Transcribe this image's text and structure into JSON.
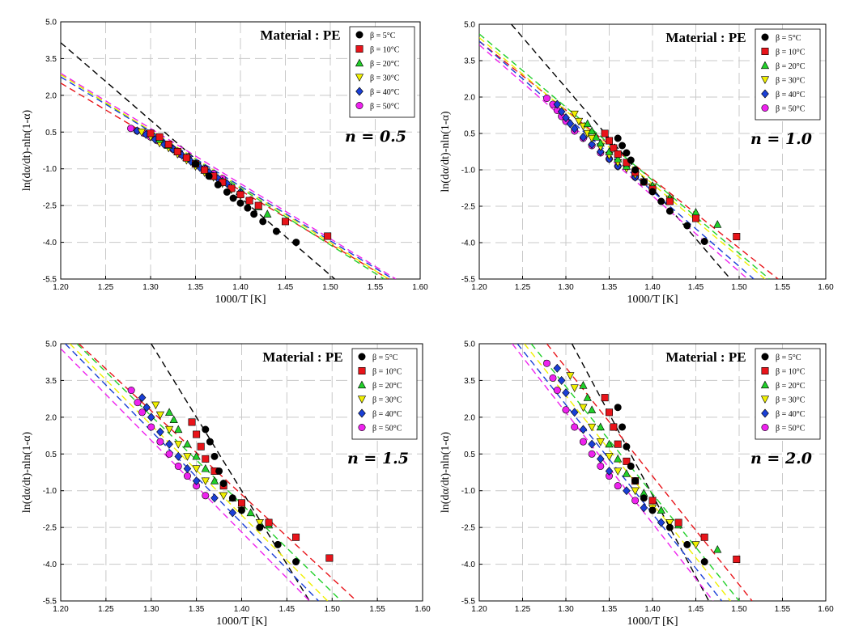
{
  "figure": {
    "legend_entries": [
      "β =  5°C",
      "β = 10°C",
      "β = 20°C",
      "β = 30°C",
      "β = 40°C",
      "β = 50°C"
    ],
    "series_colors": [
      "#000000",
      "#e8141a",
      "#22d02a",
      "#f0f000",
      "#1a3fd6",
      "#ee22ee"
    ],
    "series_markers": [
      "circle",
      "square",
      "triangle-up",
      "triangle-down",
      "diamond",
      "circle"
    ]
  },
  "chart_data": [
    {
      "type": "scatter",
      "title": "Material : PE",
      "annotation": "n = 0.5",
      "xlabel": "1000/T [K]",
      "ylabel": "ln(dα/dt)-nln(1-α)",
      "xlim": [
        1.2,
        1.6
      ],
      "ylim": [
        -5.5,
        5.0
      ],
      "xticks": [
        "1.20",
        "1.25",
        "1.30",
        "1.35",
        "1.40",
        "1.45",
        "1.50",
        "1.55",
        "1.60"
      ],
      "yticks": [
        "5.0",
        "3.5",
        "2.0",
        "0.5",
        "-1.0",
        "-2.5",
        "-4.0",
        "-5.5"
      ],
      "grid": true,
      "legend_position": "top-right",
      "series": [
        {
          "name": "β =  5°C",
          "x": [
            1.35,
            1.365,
            1.375,
            1.385,
            1.392,
            1.4,
            1.408,
            1.415,
            1.425,
            1.44,
            1.462
          ],
          "y": [
            -0.8,
            -1.3,
            -1.65,
            -1.95,
            -2.2,
            -2.4,
            -2.6,
            -2.85,
            -3.15,
            -3.55,
            -4.0
          ]
        },
        {
          "name": "β = 10°C",
          "x": [
            1.3,
            1.31,
            1.32,
            1.33,
            1.34,
            1.35,
            1.36,
            1.37,
            1.38,
            1.39,
            1.4,
            1.41,
            1.42,
            1.45,
            1.497
          ],
          "y": [
            0.45,
            0.3,
            0.0,
            -0.3,
            -0.55,
            -0.8,
            -1.05,
            -1.3,
            -1.55,
            -1.8,
            -2.05,
            -2.3,
            -2.5,
            -3.15,
            -3.75
          ]
        },
        {
          "name": "β = 20°C",
          "x": [
            1.3,
            1.31,
            1.32,
            1.33,
            1.34,
            1.35,
            1.36,
            1.37,
            1.38,
            1.39,
            1.4,
            1.41,
            1.42,
            1.43
          ],
          "y": [
            0.45,
            0.2,
            -0.05,
            -0.3,
            -0.55,
            -0.8,
            -1.05,
            -1.3,
            -1.5,
            -1.75,
            -2.0,
            -2.3,
            -2.55,
            -2.85
          ]
        },
        {
          "name": "β = 30°C",
          "x": [
            1.29,
            1.3,
            1.31,
            1.32,
            1.33,
            1.34,
            1.35,
            1.36,
            1.37,
            1.38,
            1.39,
            1.4,
            1.41
          ],
          "y": [
            0.5,
            0.3,
            0.05,
            -0.15,
            -0.4,
            -0.65,
            -0.9,
            -1.15,
            -1.35,
            -1.6,
            -1.85,
            -2.1,
            -2.35
          ]
        },
        {
          "name": "β = 40°C",
          "x": [
            1.285,
            1.295,
            1.305,
            1.315,
            1.325,
            1.335,
            1.345,
            1.355,
            1.365,
            1.375,
            1.385,
            1.4
          ],
          "y": [
            0.55,
            0.4,
            0.2,
            0.0,
            -0.2,
            -0.45,
            -0.7,
            -0.95,
            -1.15,
            -1.4,
            -1.6,
            -1.95
          ]
        },
        {
          "name": "β = 50°C",
          "x": [
            1.278,
            1.285,
            1.293,
            1.3,
            1.308,
            1.316,
            1.325,
            1.333,
            1.342,
            1.35,
            1.36,
            1.37,
            1.38
          ],
          "y": [
            0.65,
            0.55,
            0.45,
            0.3,
            0.15,
            0.0,
            -0.2,
            -0.4,
            -0.6,
            -0.8,
            -1.0,
            -1.2,
            -1.4
          ]
        }
      ],
      "fit_lines": [
        {
          "x": [
            1.2,
            1.505
          ],
          "y": [
            4.15,
            -5.5
          ]
        },
        {
          "x": [
            1.2,
            1.565
          ],
          "y": [
            2.5,
            -5.5
          ]
        },
        {
          "x": [
            1.2,
            1.56
          ],
          "y": [
            2.85,
            -5.5
          ]
        },
        {
          "x": [
            1.2,
            1.565
          ],
          "y": [
            2.85,
            -5.5
          ]
        },
        {
          "x": [
            1.2,
            1.57
          ],
          "y": [
            2.75,
            -5.5
          ]
        },
        {
          "x": [
            1.2,
            1.573
          ],
          "y": [
            2.9,
            -5.5
          ]
        }
      ]
    },
    {
      "type": "scatter",
      "title": "Material : PE",
      "annotation": "n = 1.0",
      "xlabel": "1000/T [K]",
      "ylabel": "ln(dα/dt)-nln(1-α)",
      "xlim": [
        1.2,
        1.6
      ],
      "ylim": [
        -5.5,
        5.0
      ],
      "xticks": [
        "1.20",
        "1.25",
        "1.30",
        "1.35",
        "1.40",
        "1.45",
        "1.50",
        "1.55",
        "1.60"
      ],
      "yticks": [
        "5.0",
        "3.5",
        "2.0",
        "0.5",
        "-1.0",
        "-2.5",
        "-4.0",
        "-5.5"
      ],
      "grid": true,
      "legend_position": "top-right",
      "series": [
        {
          "name": "β =  5°C",
          "x": [
            1.36,
            1.365,
            1.37,
            1.375,
            1.38,
            1.39,
            1.4,
            1.41,
            1.42,
            1.44,
            1.46
          ],
          "y": [
            0.3,
            0.0,
            -0.3,
            -0.6,
            -1.0,
            -1.5,
            -1.9,
            -2.3,
            -2.7,
            -3.3,
            -3.95
          ]
        },
        {
          "name": "β = 10°C",
          "x": [
            1.345,
            1.35,
            1.355,
            1.36,
            1.37,
            1.38,
            1.39,
            1.4,
            1.42,
            1.45,
            1.497
          ],
          "y": [
            0.5,
            0.2,
            -0.1,
            -0.35,
            -0.7,
            -1.1,
            -1.5,
            -1.8,
            -2.3,
            -3.0,
            -3.75
          ]
        },
        {
          "name": "β = 20°C",
          "x": [
            1.325,
            1.33,
            1.335,
            1.34,
            1.35,
            1.36,
            1.37,
            1.38,
            1.4,
            1.42,
            1.45,
            1.475
          ],
          "y": [
            0.9,
            0.6,
            0.35,
            0.1,
            -0.25,
            -0.55,
            -0.85,
            -1.1,
            -1.65,
            -2.15,
            -2.75,
            -3.25
          ]
        },
        {
          "name": "β = 30°C",
          "x": [
            1.31,
            1.315,
            1.32,
            1.325,
            1.33,
            1.34,
            1.35,
            1.36,
            1.37,
            1.38,
            1.4,
            1.42
          ],
          "y": [
            1.3,
            1.0,
            0.8,
            0.5,
            0.3,
            -0.05,
            -0.4,
            -0.7,
            -0.95,
            -1.2,
            -1.7,
            -2.2
          ]
        },
        {
          "name": "β = 40°C",
          "x": [
            1.29,
            1.295,
            1.3,
            1.305,
            1.31,
            1.32,
            1.33,
            1.34,
            1.35,
            1.36,
            1.38,
            1.4
          ],
          "y": [
            1.7,
            1.4,
            1.15,
            0.9,
            0.7,
            0.35,
            0.05,
            -0.25,
            -0.55,
            -0.85,
            -1.3,
            -1.75
          ]
        },
        {
          "name": "β = 50°C",
          "x": [
            1.278,
            1.285,
            1.29,
            1.295,
            1.3,
            1.31,
            1.32,
            1.33,
            1.34,
            1.35,
            1.36,
            1.38
          ],
          "y": [
            1.95,
            1.7,
            1.45,
            1.2,
            1.0,
            0.6,
            0.3,
            0.0,
            -0.3,
            -0.55,
            -0.85,
            -1.3
          ]
        }
      ],
      "fit_lines": [
        {
          "x": [
            1.237,
            1.49
          ],
          "y": [
            5.0,
            -5.5
          ]
        },
        {
          "x": [
            1.2,
            1.545
          ],
          "y": [
            4.3,
            -5.5
          ]
        },
        {
          "x": [
            1.2,
            1.535
          ],
          "y": [
            4.6,
            -5.5
          ]
        },
        {
          "x": [
            1.2,
            1.53
          ],
          "y": [
            4.45,
            -5.5
          ]
        },
        {
          "x": [
            1.2,
            1.517
          ],
          "y": [
            4.3,
            -5.5
          ]
        },
        {
          "x": [
            1.2,
            1.51
          ],
          "y": [
            4.15,
            -5.5
          ]
        }
      ]
    },
    {
      "type": "scatter",
      "title": "Material : PE",
      "annotation": "n = 1.5",
      "xlabel": "1000/T [K]",
      "ylabel": "ln(dα/dt)-nln(1-α)",
      "xlim": [
        1.2,
        1.6
      ],
      "ylim": [
        -5.5,
        5.0
      ],
      "xticks": [
        "1.20",
        "1.25",
        "1.30",
        "1.35",
        "1.40",
        "1.45",
        "1.50",
        "1.55",
        "1.60"
      ],
      "yticks": [
        "5.0",
        "3.5",
        "2.0",
        "0.5",
        "-1.0",
        "-2.5",
        "-4.0",
        "-5.5"
      ],
      "grid": true,
      "legend_position": "top-right",
      "series": [
        {
          "name": "β =  5°C",
          "x": [
            1.36,
            1.365,
            1.37,
            1.375,
            1.38,
            1.39,
            1.4,
            1.42,
            1.44,
            1.46
          ],
          "y": [
            1.5,
            1.0,
            0.4,
            -0.2,
            -0.7,
            -1.3,
            -1.8,
            -2.5,
            -3.2,
            -3.9
          ]
        },
        {
          "name": "β = 10°C",
          "x": [
            1.345,
            1.35,
            1.355,
            1.36,
            1.37,
            1.38,
            1.4,
            1.43,
            1.46,
            1.497
          ],
          "y": [
            1.8,
            1.3,
            0.8,
            0.3,
            -0.2,
            -0.8,
            -1.5,
            -2.3,
            -2.9,
            -3.75
          ]
        },
        {
          "name": "β = 20°C",
          "x": [
            1.32,
            1.325,
            1.33,
            1.34,
            1.35,
            1.36,
            1.37,
            1.39,
            1.41,
            1.43
          ],
          "y": [
            2.2,
            1.9,
            1.5,
            0.9,
            0.4,
            -0.1,
            -0.6,
            -1.3,
            -1.9,
            -2.4
          ]
        },
        {
          "name": "β = 30°C",
          "x": [
            1.305,
            1.31,
            1.32,
            1.33,
            1.34,
            1.35,
            1.36,
            1.38,
            1.4,
            1.42
          ],
          "y": [
            2.5,
            2.1,
            1.5,
            0.9,
            0.4,
            -0.1,
            -0.6,
            -1.2,
            -1.8,
            -2.3
          ]
        },
        {
          "name": "β = 40°C",
          "x": [
            1.29,
            1.295,
            1.3,
            1.31,
            1.32,
            1.33,
            1.34,
            1.35,
            1.37,
            1.39
          ],
          "y": [
            2.8,
            2.4,
            2.0,
            1.4,
            0.9,
            0.4,
            -0.1,
            -0.6,
            -1.3,
            -1.9
          ]
        },
        {
          "name": "β = 50°C",
          "x": [
            1.278,
            1.285,
            1.29,
            1.3,
            1.31,
            1.32,
            1.33,
            1.34,
            1.35,
            1.36
          ],
          "y": [
            3.1,
            2.6,
            2.2,
            1.6,
            1.0,
            0.5,
            0.0,
            -0.4,
            -0.8,
            -1.2
          ]
        }
      ],
      "fit_lines": [
        {
          "x": [
            1.3,
            1.475
          ],
          "y": [
            5.0,
            -5.5
          ]
        },
        {
          "x": [
            1.22,
            1.527
          ],
          "y": [
            5.0,
            -5.5
          ]
        },
        {
          "x": [
            1.218,
            1.51
          ],
          "y": [
            5.0,
            -5.5
          ]
        },
        {
          "x": [
            1.21,
            1.495
          ],
          "y": [
            5.0,
            -5.5
          ]
        },
        {
          "x": [
            1.205,
            1.485
          ],
          "y": [
            5.0,
            -5.5
          ]
        },
        {
          "x": [
            1.2,
            1.475
          ],
          "y": [
            4.8,
            -5.5
          ]
        }
      ]
    },
    {
      "type": "scatter",
      "title": "Material : PE",
      "annotation": "n = 2.0",
      "xlabel": "1000/T [K]",
      "ylabel": "ln(dα/dt)-nln(1-α)",
      "xlim": [
        1.2,
        1.6
      ],
      "ylim": [
        -5.5,
        5.0
      ],
      "xticks": [
        "1.20",
        "1.25",
        "1.30",
        "1.35",
        "1.40",
        "1.45",
        "1.50",
        "1.55",
        "1.60"
      ],
      "yticks": [
        "5.0",
        "3.5",
        "2.0",
        "0.5",
        "-1.0",
        "-2.5",
        "-4.0",
        "-5.5"
      ],
      "grid": true,
      "legend_position": "top-right",
      "series": [
        {
          "name": "β =  5°C",
          "x": [
            1.36,
            1.365,
            1.37,
            1.375,
            1.38,
            1.39,
            1.4,
            1.42,
            1.44,
            1.46
          ],
          "y": [
            2.4,
            1.6,
            0.8,
            0.0,
            -0.6,
            -1.3,
            -1.8,
            -2.5,
            -3.2,
            -3.9
          ]
        },
        {
          "name": "β = 10°C",
          "x": [
            1.345,
            1.35,
            1.355,
            1.36,
            1.37,
            1.38,
            1.4,
            1.43,
            1.46,
            1.497
          ],
          "y": [
            2.8,
            2.2,
            1.6,
            0.9,
            0.2,
            -0.6,
            -1.4,
            -2.3,
            -2.9,
            -3.8
          ]
        },
        {
          "name": "β = 20°C",
          "x": [
            1.32,
            1.325,
            1.33,
            1.34,
            1.35,
            1.36,
            1.37,
            1.39,
            1.41,
            1.43,
            1.475
          ],
          "y": [
            3.3,
            2.8,
            2.3,
            1.6,
            0.9,
            0.3,
            -0.3,
            -1.1,
            -1.8,
            -2.4,
            -3.4
          ]
        },
        {
          "name": "β = 30°C",
          "x": [
            1.305,
            1.31,
            1.32,
            1.33,
            1.34,
            1.35,
            1.36,
            1.38,
            1.4,
            1.42,
            1.45
          ],
          "y": [
            3.7,
            3.2,
            2.4,
            1.6,
            1.0,
            0.4,
            -0.2,
            -1.0,
            -1.7,
            -2.3,
            -3.2
          ]
        },
        {
          "name": "β = 40°C",
          "x": [
            1.29,
            1.295,
            1.3,
            1.31,
            1.32,
            1.33,
            1.34,
            1.35,
            1.37,
            1.39,
            1.41
          ],
          "y": [
            4.0,
            3.5,
            3.0,
            2.2,
            1.5,
            0.9,
            0.3,
            -0.2,
            -1.0,
            -1.7,
            -2.3
          ]
        },
        {
          "name": "β = 50°C",
          "x": [
            1.278,
            1.285,
            1.29,
            1.3,
            1.31,
            1.32,
            1.33,
            1.34,
            1.35,
            1.36,
            1.38
          ],
          "y": [
            4.2,
            3.6,
            3.1,
            2.3,
            1.6,
            1.0,
            0.5,
            0.0,
            -0.4,
            -0.8,
            -1.4
          ]
        }
      ],
      "fit_lines": [
        {
          "x": [
            1.307,
            1.465
          ],
          "y": [
            5.0,
            -5.5
          ]
        },
        {
          "x": [
            1.278,
            1.515
          ],
          "y": [
            5.0,
            -5.5
          ]
        },
        {
          "x": [
            1.26,
            1.5
          ],
          "y": [
            5.0,
            -5.5
          ]
        },
        {
          "x": [
            1.252,
            1.49
          ],
          "y": [
            5.0,
            -5.5
          ]
        },
        {
          "x": [
            1.244,
            1.48
          ],
          "y": [
            5.0,
            -5.5
          ]
        },
        {
          "x": [
            1.238,
            1.47
          ],
          "y": [
            5.0,
            -5.5
          ]
        }
      ]
    }
  ]
}
